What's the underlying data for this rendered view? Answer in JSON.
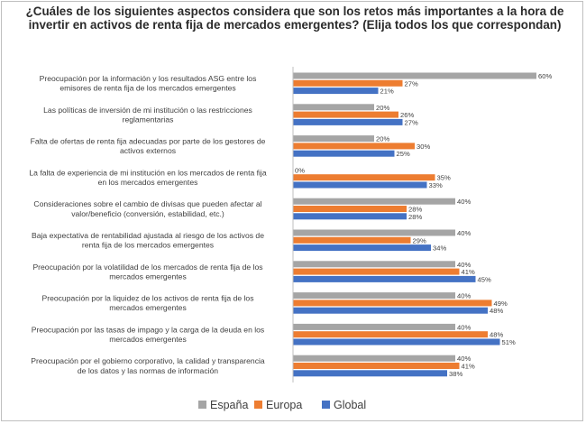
{
  "chart_data": {
    "type": "bar",
    "orientation": "horizontal",
    "title": "¿Cuáles de los siguientes aspectos considera que son los retos más importantes a la hora de invertir en activos de renta fija de mercados emergentes?  (Elija todos los que correspondan)",
    "categories": [
      [
        "Preocupación por la información y los resultados ASG entre los",
        "emisores de renta fija de los mercados emergentes"
      ],
      [
        "Las políticas de inversión de mi institución o las restricciones",
        "reglamentarias"
      ],
      [
        "Falta de ofertas de renta fija adecuadas por parte de los gestores de",
        "activos externos"
      ],
      [
        "La falta de experiencia de mi institución en los mercados de renta fija",
        "en los mercados emergentes"
      ],
      [
        "Consideraciones sobre el cambio de divisas que pueden afectar al",
        "valor/beneficio (conversión, estabilidad, etc.)"
      ],
      [
        "Baja expectativa de rentabilidad ajustada al riesgo de los activos de",
        "renta fija de los mercados emergentes"
      ],
      [
        "Preocupación por la volatilidad de los mercados de renta fija de los",
        "mercados emergentes"
      ],
      [
        "Preocupación por la liquidez de los activos de renta fija de los",
        "mercados emergentes"
      ],
      [
        "Preocupación por las tasas de impago y la carga de la deuda en los",
        "mercados emergentes"
      ],
      [
        "Preocupación por el gobierno corporativo, la calidad y transparencia",
        "de los datos y las normas de información"
      ]
    ],
    "series": [
      {
        "name": "España",
        "color": "#a5a5a5",
        "values": [
          60,
          20,
          20,
          0,
          40,
          40,
          40,
          40,
          40,
          40
        ]
      },
      {
        "name": "Europa",
        "color": "#ed7d31",
        "values": [
          27,
          26,
          30,
          35,
          28,
          29,
          41,
          49,
          48,
          41
        ]
      },
      {
        "name": "Global",
        "color": "#4472c4",
        "values": [
          21,
          27,
          25,
          33,
          28,
          34,
          45,
          48,
          51,
          38
        ]
      }
    ],
    "value_suffix": "%",
    "xlim": [
      0,
      60
    ],
    "grid": false,
    "legend_position": "bottom"
  }
}
